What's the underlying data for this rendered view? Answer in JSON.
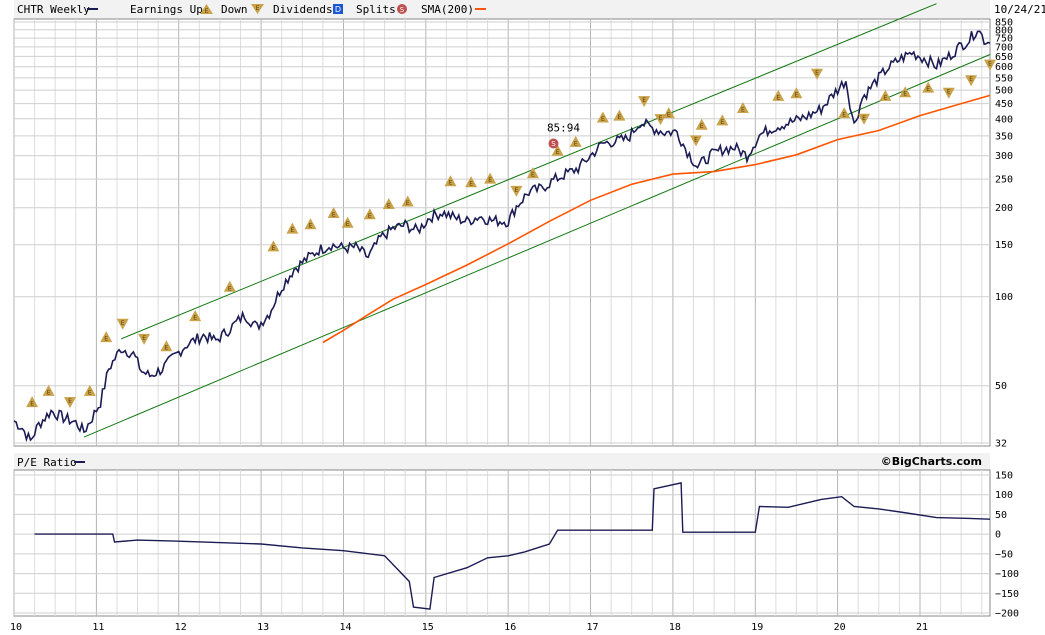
{
  "chart_data": [
    {
      "type": "line",
      "panel": "price",
      "scale": "log",
      "ylim": [
        32,
        850
      ],
      "xlim": [
        2010.0,
        2021.85
      ],
      "yticks": [
        32,
        50,
        100,
        150,
        200,
        250,
        300,
        350,
        400,
        450,
        500,
        550,
        600,
        650,
        700,
        750,
        800,
        850
      ],
      "xticks": [
        "10",
        "11",
        "12",
        "13",
        "14",
        "15",
        "16",
        "17",
        "18",
        "19",
        "20",
        "21"
      ],
      "grid": true,
      "date_label": "10/24/21",
      "legend": {
        "symbol": "CHTR Weekly",
        "earnings_up": "Earnings Up",
        "down": "Down",
        "dividends": "Dividends",
        "dividends_badge": "D",
        "splits": "Splits",
        "splits_badge": "S",
        "sma": "SMA(200)"
      },
      "colors": {
        "price": "#1c1c55",
        "sma": "#ff5500",
        "trend": "#117711",
        "earnings": "#c9a24a",
        "split": "#c05050",
        "dividend": "#1a56d6"
      },
      "price_path": [
        [
          2010.0,
          38
        ],
        [
          2010.1,
          36
        ],
        [
          2010.2,
          32.5
        ],
        [
          2010.3,
          37
        ],
        [
          2010.45,
          41
        ],
        [
          2010.6,
          39
        ],
        [
          2010.75,
          37.5
        ],
        [
          2010.85,
          35
        ],
        [
          2010.95,
          39
        ],
        [
          2011.05,
          44
        ],
        [
          2011.15,
          57
        ],
        [
          2011.3,
          67
        ],
        [
          2011.45,
          64
        ],
        [
          2011.55,
          56
        ],
        [
          2011.65,
          54
        ],
        [
          2011.8,
          57
        ],
        [
          2011.95,
          63
        ],
        [
          2012.1,
          69
        ],
        [
          2012.3,
          74
        ],
        [
          2012.45,
          71
        ],
        [
          2012.6,
          77
        ],
        [
          2012.8,
          87
        ],
        [
          2012.95,
          79
        ],
        [
          2013.1,
          88
        ],
        [
          2013.25,
          108
        ],
        [
          2013.4,
          124
        ],
        [
          2013.55,
          134
        ],
        [
          2013.7,
          144
        ],
        [
          2013.85,
          150
        ],
        [
          2014.0,
          146
        ],
        [
          2014.15,
          147
        ],
        [
          2014.3,
          136
        ],
        [
          2014.45,
          158
        ],
        [
          2014.6,
          170
        ],
        [
          2014.75,
          175
        ],
        [
          2014.9,
          167
        ],
        [
          2015.05,
          186
        ],
        [
          2015.2,
          193
        ],
        [
          2015.35,
          185
        ],
        [
          2015.5,
          180
        ],
        [
          2015.65,
          187
        ],
        [
          2015.8,
          181
        ],
        [
          2016.0,
          180
        ],
        [
          2016.1,
          202
        ],
        [
          2016.25,
          226
        ],
        [
          2016.4,
          232
        ],
        [
          2016.55,
          248
        ],
        [
          2016.7,
          260
        ],
        [
          2016.85,
          272
        ],
        [
          2017.0,
          300
        ],
        [
          2017.15,
          330
        ],
        [
          2017.3,
          336
        ],
        [
          2017.45,
          342
        ],
        [
          2017.6,
          390
        ],
        [
          2017.75,
          372
        ],
        [
          2017.9,
          360
        ],
        [
          2018.05,
          362
        ],
        [
          2018.15,
          318
        ],
        [
          2018.3,
          275
        ],
        [
          2018.45,
          300
        ],
        [
          2018.6,
          315
        ],
        [
          2018.75,
          320
        ],
        [
          2018.9,
          300
        ],
        [
          2019.05,
          352
        ],
        [
          2019.2,
          372
        ],
        [
          2019.35,
          384
        ],
        [
          2019.5,
          395
        ],
        [
          2019.65,
          410
        ],
        [
          2019.8,
          432
        ],
        [
          2019.95,
          485
        ],
        [
          2020.1,
          540
        ],
        [
          2020.2,
          380
        ],
        [
          2020.3,
          470
        ],
        [
          2020.45,
          530
        ],
        [
          2020.6,
          590
        ],
        [
          2020.75,
          635
        ],
        [
          2020.9,
          670
        ],
        [
          2021.05,
          640
        ],
        [
          2021.2,
          605
        ],
        [
          2021.35,
          650
        ],
        [
          2021.5,
          710
        ],
        [
          2021.6,
          740
        ],
        [
          2021.7,
          810
        ],
        [
          2021.78,
          740
        ],
        [
          2021.85,
          720
        ]
      ],
      "sma_path": [
        [
          2013.75,
          70
        ],
        [
          2014.0,
          77
        ],
        [
          2014.3,
          87
        ],
        [
          2014.6,
          98
        ],
        [
          2015.0,
          110
        ],
        [
          2015.5,
          128
        ],
        [
          2016.0,
          151
        ],
        [
          2016.5,
          180
        ],
        [
          2017.0,
          212
        ],
        [
          2017.5,
          240
        ],
        [
          2018.0,
          260
        ],
        [
          2018.5,
          265
        ],
        [
          2019.0,
          280
        ],
        [
          2019.5,
          302
        ],
        [
          2020.0,
          340
        ],
        [
          2020.5,
          365
        ],
        [
          2021.0,
          410
        ],
        [
          2021.5,
          450
        ],
        [
          2021.85,
          480
        ]
      ],
      "trend_lines": [
        [
          [
            2010.85,
            33.5
          ],
          [
            2021.85,
            660
          ]
        ],
        [
          [
            2011.3,
            72
          ],
          [
            2021.2,
            980
          ]
        ]
      ],
      "split_annotation": {
        "x": 2016.55,
        "y": 330,
        "label": "85:94"
      },
      "earnings_up_points": [
        [
          2010.22,
          44
        ],
        [
          2010.42,
          48
        ],
        [
          2010.92,
          48
        ],
        [
          2011.12,
          73
        ],
        [
          2011.85,
          68
        ],
        [
          2012.2,
          86
        ],
        [
          2012.62,
          108
        ],
        [
          2013.15,
          148
        ],
        [
          2013.38,
          170
        ],
        [
          2013.6,
          176
        ],
        [
          2013.88,
          192
        ],
        [
          2014.05,
          178
        ],
        [
          2014.32,
          190
        ],
        [
          2014.55,
          206
        ],
        [
          2014.78,
          210
        ],
        [
          2015.3,
          246
        ],
        [
          2015.55,
          244
        ],
        [
          2015.78,
          251
        ],
        [
          2016.3,
          262
        ],
        [
          2016.6,
          312
        ],
        [
          2016.82,
          334
        ],
        [
          2017.15,
          404
        ],
        [
          2017.35,
          410
        ],
        [
          2017.95,
          418
        ],
        [
          2018.35,
          382
        ],
        [
          2018.6,
          395
        ],
        [
          2018.85,
          435
        ],
        [
          2019.28,
          478
        ],
        [
          2019.5,
          488
        ],
        [
          2020.08,
          418
        ],
        [
          2020.58,
          478
        ],
        [
          2020.82,
          492
        ],
        [
          2021.1,
          510
        ]
      ],
      "earnings_down_points": [
        [
          2010.68,
          44
        ],
        [
          2011.32,
          81
        ],
        [
          2011.58,
          72
        ],
        [
          2016.1,
          228
        ],
        [
          2017.65,
          459
        ],
        [
          2017.85,
          399
        ],
        [
          2018.28,
          338
        ],
        [
          2019.75,
          568
        ],
        [
          2020.32,
          400
        ],
        [
          2021.35,
          490
        ],
        [
          2021.62,
          540
        ],
        [
          2021.85,
          610
        ]
      ]
    },
    {
      "type": "line",
      "panel": "pe",
      "title": "P/E Ratio",
      "ylim": [
        -200,
        150
      ],
      "yticks": [
        150,
        100,
        50,
        0,
        -50,
        -100,
        -150,
        -200
      ],
      "grid": true,
      "brand": "©BigCharts.com",
      "color": "#1c1c55",
      "pe_path": [
        [
          2010.25,
          0
        ],
        [
          2011.2,
          0
        ],
        [
          2011.22,
          -20
        ],
        [
          2011.5,
          -15
        ],
        [
          2012.0,
          -18
        ],
        [
          2013.0,
          -25
        ],
        [
          2013.5,
          -35
        ],
        [
          2014.0,
          -42
        ],
        [
          2014.5,
          -55
        ],
        [
          2014.8,
          -120
        ],
        [
          2014.85,
          -185
        ],
        [
          2015.05,
          -190
        ],
        [
          2015.1,
          -110
        ],
        [
          2015.5,
          -85
        ],
        [
          2015.75,
          -60
        ],
        [
          2016.0,
          -55
        ],
        [
          2016.2,
          -45
        ],
        [
          2016.5,
          -25
        ],
        [
          2016.6,
          10
        ],
        [
          2017.0,
          10
        ],
        [
          2017.5,
          10
        ],
        [
          2017.75,
          10
        ],
        [
          2017.77,
          115
        ],
        [
          2018.1,
          130
        ],
        [
          2018.12,
          5
        ],
        [
          2019.0,
          5
        ],
        [
          2019.05,
          70
        ],
        [
          2019.4,
          68
        ],
        [
          2019.8,
          88
        ],
        [
          2020.05,
          95
        ],
        [
          2020.2,
          70
        ],
        [
          2020.5,
          64
        ],
        [
          2020.8,
          55
        ],
        [
          2021.2,
          42
        ],
        [
          2021.6,
          40
        ],
        [
          2021.85,
          38
        ]
      ]
    }
  ]
}
